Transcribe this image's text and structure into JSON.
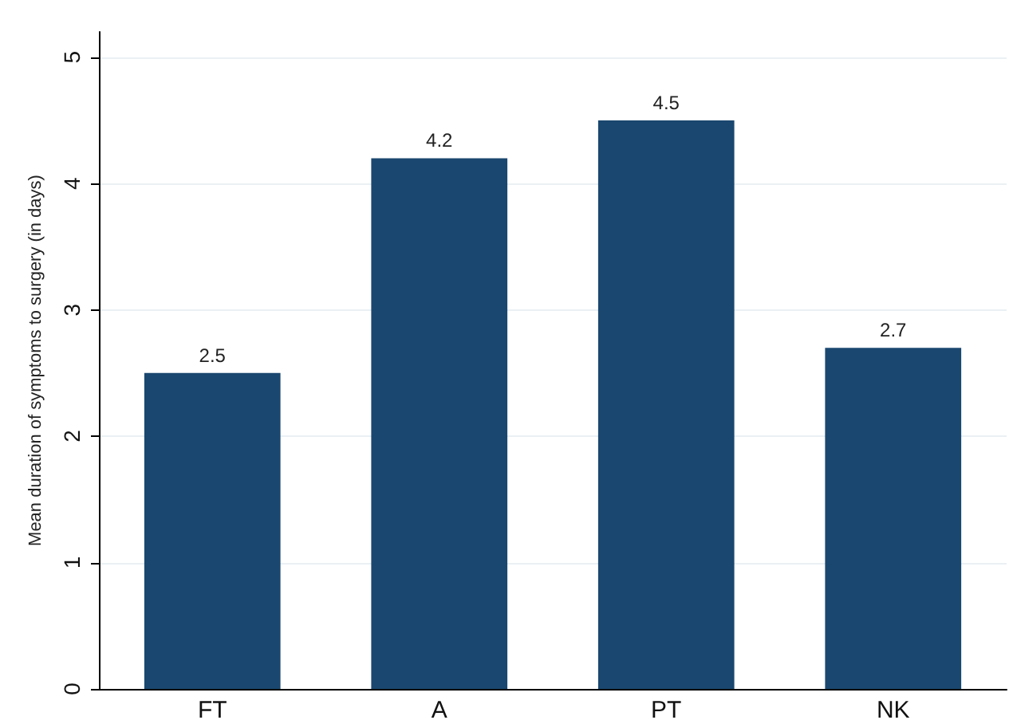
{
  "chart_data": {
    "type": "bar",
    "ylabel": "Mean duration of symptoms to surgery (in days)",
    "categories": [
      "FT",
      "A",
      "PT",
      "NK"
    ],
    "values": [
      2.5,
      4.2,
      4.5,
      2.7
    ],
    "color": "#1a476f",
    "ylim": [
      0,
      5.2
    ],
    "yticks": [
      0,
      1,
      2,
      3,
      4,
      5
    ],
    "grid": "y",
    "data_labels": true
  }
}
